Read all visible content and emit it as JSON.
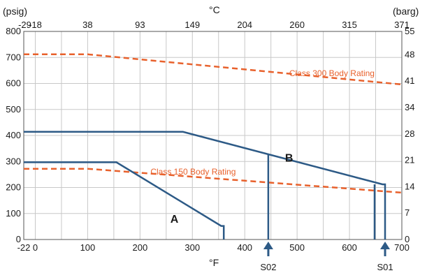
{
  "chart_data": {
    "type": "line",
    "title": "",
    "xlabel_bottom": "°F",
    "xlabel_top": "°C",
    "ylabel_left": "(psig)",
    "ylabel_right": "(barg)",
    "xlim": [
      -22,
      700
    ],
    "ylim": [
      0,
      800
    ],
    "grid": true,
    "x_bottom_ticks": [
      -22,
      0,
      100,
      200,
      300,
      400,
      500,
      600,
      700
    ],
    "x_top_ticks": [
      {
        "x": -20,
        "label": "-29"
      },
      {
        "x": 0,
        "label": "-18"
      },
      {
        "x": 100,
        "label": "38"
      },
      {
        "x": 200,
        "label": "93"
      },
      {
        "x": 300,
        "label": "149"
      },
      {
        "x": 400,
        "label": "204"
      },
      {
        "x": 500,
        "label": "260"
      },
      {
        "x": 600,
        "label": "315"
      },
      {
        "x": 700,
        "label": "371"
      }
    ],
    "y_left_ticks": [
      0,
      100,
      200,
      300,
      400,
      500,
      600,
      700,
      800
    ],
    "y_right_ticks": [
      {
        "y": 0,
        "label": "0"
      },
      {
        "y": 101.5,
        "label": "7"
      },
      {
        "y": 203,
        "label": "14"
      },
      {
        "y": 304.5,
        "label": "21"
      },
      {
        "y": 406,
        "label": "28"
      },
      {
        "y": 507.5,
        "label": "34"
      },
      {
        "y": 609,
        "label": "41"
      },
      {
        "y": 710.5,
        "label": "48"
      },
      {
        "y": 800,
        "label": "55"
      }
    ],
    "series": [
      {
        "name": "Class 300 Body Rating",
        "style": "dashed",
        "color": "#e8612c",
        "points": [
          [
            -22,
            712
          ],
          [
            100,
            712
          ],
          [
            700,
            596
          ]
        ]
      },
      {
        "name": "Class 150 Body Rating",
        "style": "dashed",
        "color": "#e8612c",
        "points": [
          [
            -22,
            272
          ],
          [
            100,
            272
          ],
          [
            700,
            180
          ]
        ]
      },
      {
        "name": "A",
        "style": "solid",
        "color": "#2d5a86",
        "points": [
          [
            -22,
            297
          ],
          [
            155,
            297
          ],
          [
            355,
            52
          ],
          [
            360,
            52
          ],
          [
            360,
            0
          ]
        ]
      },
      {
        "name": "B",
        "style": "solid",
        "color": "#2d5a86",
        "points": [
          [
            -22,
            414
          ],
          [
            282,
            414
          ],
          [
            663,
            212
          ],
          [
            668,
            212
          ],
          [
            668,
            0
          ]
        ]
      },
      {
        "name": "",
        "style": "solid",
        "color": "#2d5a86",
        "points": [
          [
            445,
            327
          ],
          [
            445,
            0
          ]
        ]
      },
      {
        "name": "",
        "style": "solid",
        "color": "#2d5a86",
        "points": [
          [
            648,
            212
          ],
          [
            648,
            0
          ]
        ]
      }
    ],
    "annotations": [
      {
        "text": "Class 300 Body Rating",
        "x": 485,
        "y": 628,
        "kind": "series"
      },
      {
        "text": "Class 150 Body Rating",
        "x": 220,
        "y": 250,
        "kind": "series"
      },
      {
        "text": "A",
        "x": 258,
        "y": 65,
        "kind": "curve"
      },
      {
        "text": "B",
        "x": 477,
        "y": 300,
        "kind": "curve"
      }
    ],
    "markers": [
      {
        "label": "S02",
        "x": 445
      },
      {
        "label": "S01",
        "x": 668
      }
    ]
  }
}
